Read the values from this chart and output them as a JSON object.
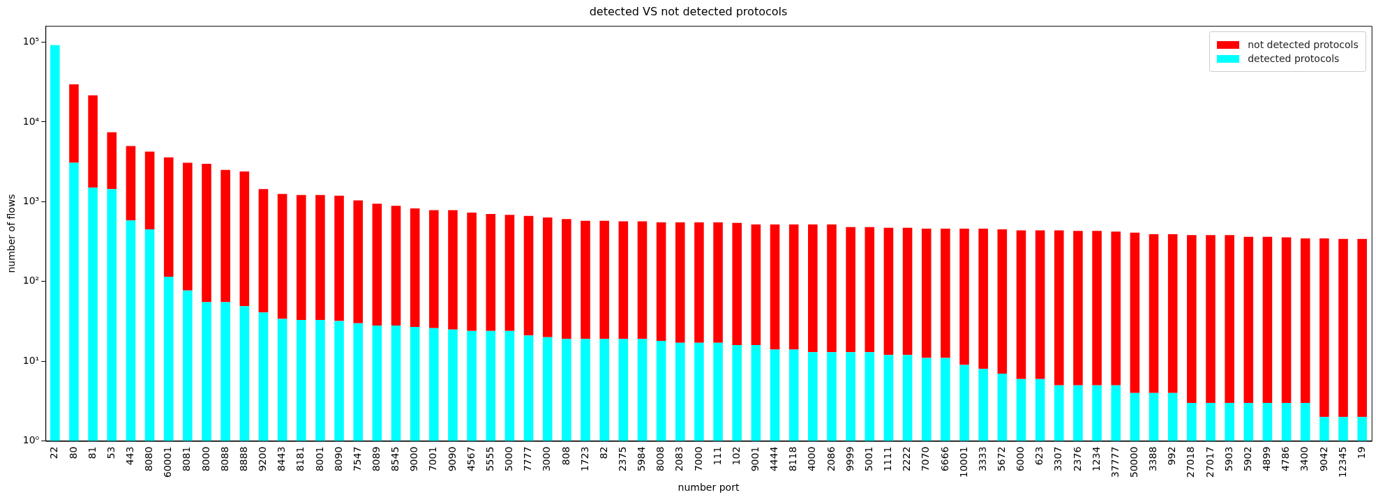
{
  "chart_data": {
    "type": "bar",
    "title": "detected VS not detected protocols",
    "xlabel": "number port",
    "ylabel": "number of flows",
    "categories": [
      "22",
      "80",
      "81",
      "53",
      "443",
      "8080",
      "60001",
      "8081",
      "8000",
      "8088",
      "8888",
      "9200",
      "8443",
      "8181",
      "8001",
      "8090",
      "7547",
      "8089",
      "8545",
      "9000",
      "7001",
      "9090",
      "4567",
      "5555",
      "5000",
      "7777",
      "3000",
      "808",
      "1723",
      "82",
      "2375",
      "5984",
      "8008",
      "2083",
      "7000",
      "111",
      "102",
      "9001",
      "4444",
      "8118",
      "4000",
      "2086",
      "9999",
      "5001",
      "1111",
      "2222",
      "7070",
      "6666",
      "10001",
      "3333",
      "5672",
      "6000",
      "623",
      "3307",
      "2376",
      "1234",
      "37777",
      "50000",
      "3388",
      "992",
      "27018",
      "27017",
      "5903",
      "5902",
      "4899",
      "4786",
      "3400",
      "9042",
      "12345",
      "19"
    ],
    "stacked": true,
    "log": "y",
    "legend": "top right",
    "grid": false,
    "ylim": [
      1,
      160000
    ],
    "yticks": [
      {
        "value": 1,
        "label": "10⁰"
      },
      {
        "value": 10,
        "label": "10¹"
      },
      {
        "value": 100,
        "label": "10²"
      },
      {
        "value": 1000,
        "label": "10³"
      },
      {
        "value": 10000,
        "label": "10⁴"
      },
      {
        "value": 100000,
        "label": "10⁵"
      }
    ],
    "series": [
      {
        "name": "detected protocols",
        "color": "#00ffff",
        "values": [
          92000,
          3080,
          1500,
          1440,
          584,
          450,
          115,
          77,
          55,
          55,
          49,
          41,
          34,
          33,
          33,
          32,
          30,
          28,
          28,
          27,
          26,
          25,
          24,
          24,
          24,
          21,
          20,
          19,
          19,
          19,
          19,
          19,
          18,
          17,
          17,
          17,
          16,
          16,
          14,
          14,
          13,
          13,
          13,
          13,
          12,
          12,
          11,
          11,
          9,
          8,
          7,
          6,
          6,
          5,
          5,
          5,
          5,
          4,
          4,
          4,
          3,
          3,
          3,
          3,
          3,
          3,
          3,
          2,
          2,
          2
        ]
      },
      {
        "name": "not detected protocols",
        "color": "#ff0000",
        "values": [
          null,
          26500,
          20100,
          6000,
          4400,
          3800,
          3480,
          3000,
          2940,
          2450,
          2340,
          1400,
          1215,
          1180,
          1180,
          1160,
          1010,
          918,
          859,
          796,
          759,
          760,
          705,
          679,
          660,
          644,
          614,
          586,
          559,
          559,
          549,
          549,
          534,
          535,
          535,
          535,
          526,
          502,
          504,
          504,
          505,
          505,
          467,
          467,
          459,
          459,
          448,
          448,
          450,
          451,
          443,
          432,
          432,
          433,
          425,
          425,
          417,
          406,
          388,
          388,
          378,
          378,
          378,
          360,
          360,
          354,
          344,
          345,
          339,
          339
        ]
      }
    ]
  }
}
